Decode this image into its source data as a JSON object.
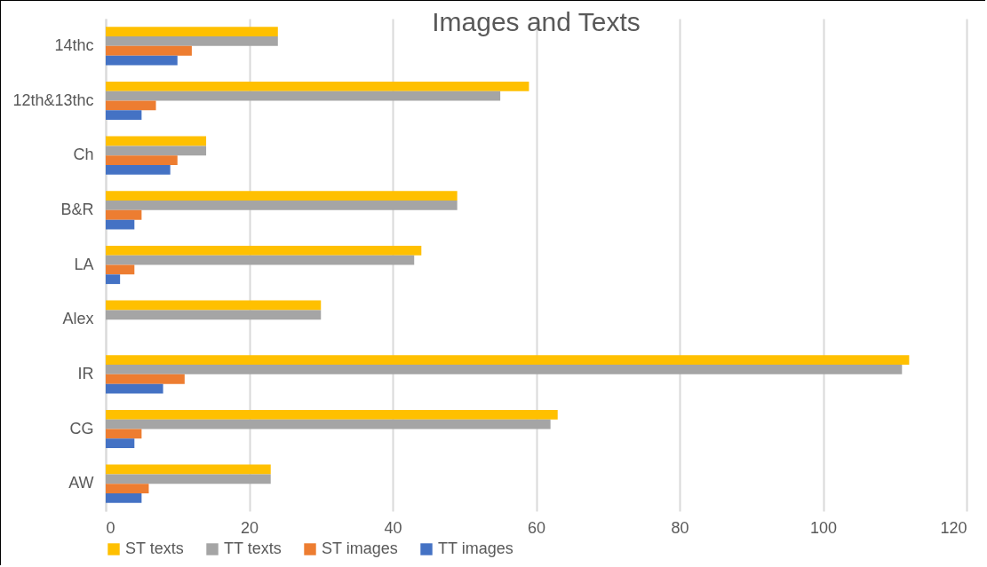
{
  "chart_data": {
    "type": "bar",
    "orientation": "horizontal",
    "title": "Images and Texts",
    "categories": [
      "14thc",
      "12th&13thc",
      "Ch",
      "B&R",
      "LA",
      "Alex",
      "IR",
      "CG",
      "AW"
    ],
    "series": [
      {
        "name": "ST texts",
        "color": "#ffc000",
        "values": [
          24,
          59,
          14,
          49,
          44,
          30,
          112,
          63,
          23
        ]
      },
      {
        "name": "TT texts",
        "color": "#a5a5a5",
        "values": [
          24,
          55,
          14,
          49,
          43,
          30,
          111,
          62,
          23
        ]
      },
      {
        "name": "ST images",
        "color": "#ed7d31",
        "values": [
          12,
          7,
          10,
          5,
          4,
          null,
          11,
          5,
          6
        ]
      },
      {
        "name": "TT images",
        "color": "#4472c4",
        "values": [
          10,
          5,
          9,
          4,
          2,
          null,
          8,
          4,
          5
        ]
      }
    ],
    "xlim": [
      0,
      120
    ],
    "xticks": [
      0,
      20,
      40,
      60,
      80,
      100,
      120
    ],
    "grid": "x",
    "legend": "bottom"
  }
}
